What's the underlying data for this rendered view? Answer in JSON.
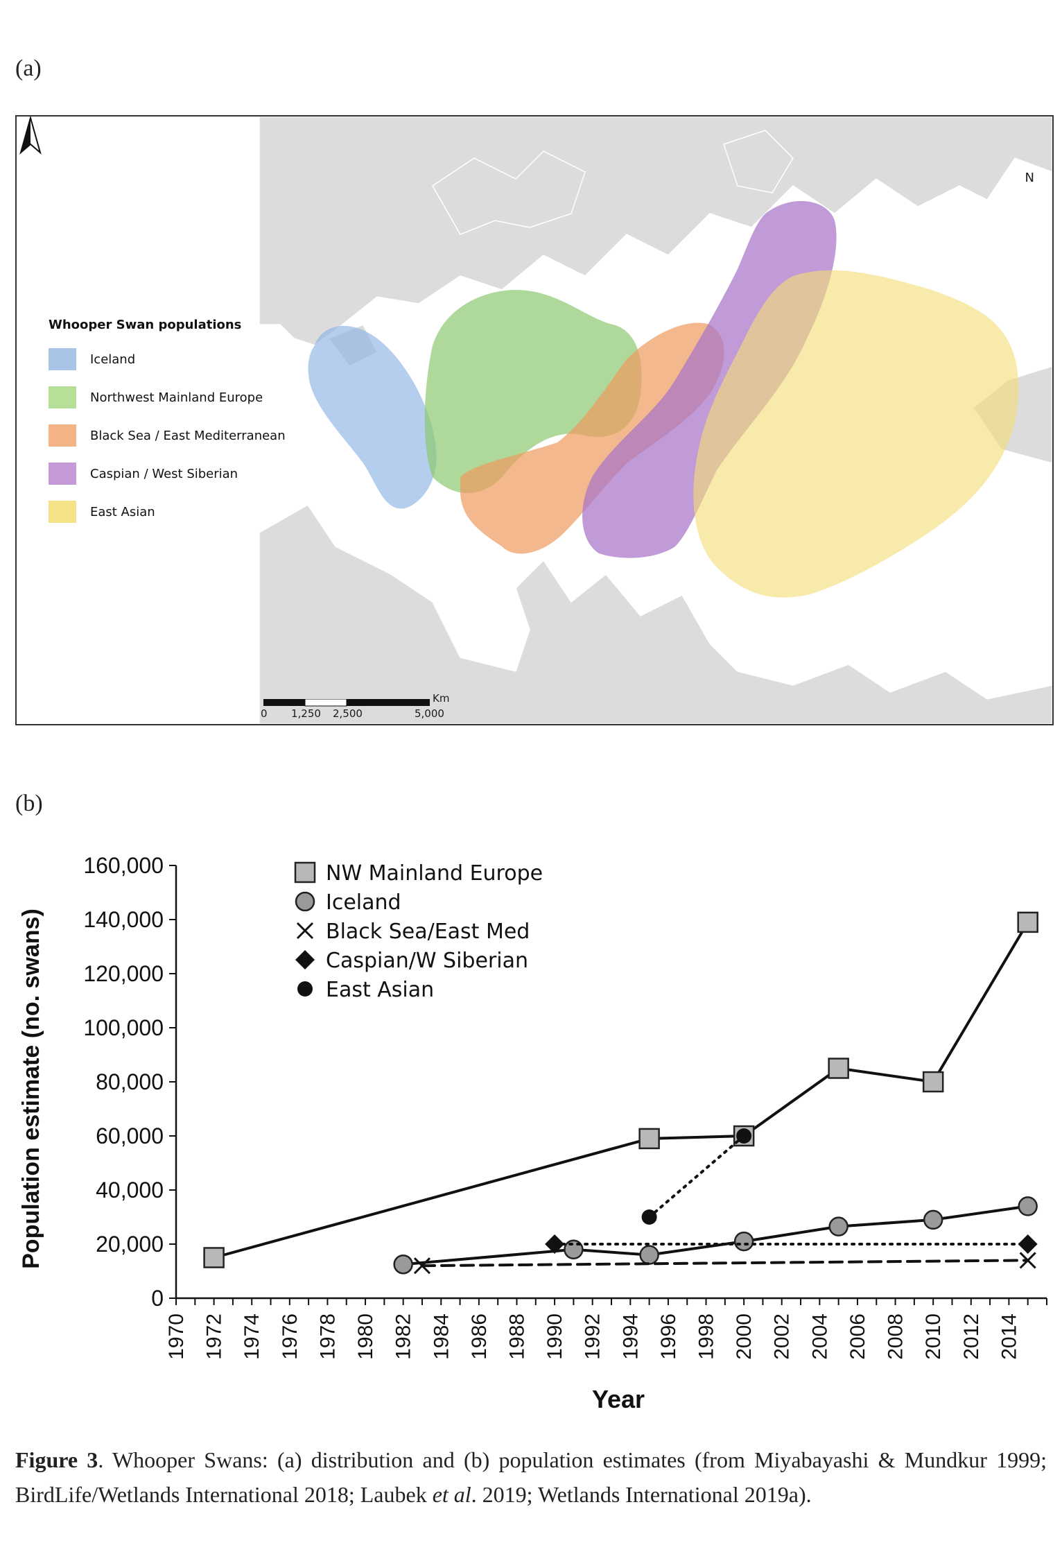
{
  "panels": {
    "a": "(a)",
    "b": "(b)"
  },
  "map": {
    "legend_title": "Whooper Swan populations",
    "legend": [
      {
        "label": "Iceland",
        "color": "#a9c3e6"
      },
      {
        "label": "Northwest Mainland Europe",
        "color": "#b6df98"
      },
      {
        "label": "Black Sea / East Mediterranean",
        "color": "#f3b387"
      },
      {
        "label": "Caspian / West Siberian",
        "color": "#c49ad8"
      },
      {
        "label": "East Asian",
        "color": "#f5e38a"
      }
    ],
    "north": "N",
    "scale": {
      "unit": "Km",
      "ticks": [
        "0",
        "1,250",
        "2,500",
        "5,000"
      ]
    }
  },
  "chart_data": {
    "type": "line",
    "xlabel": "Year",
    "ylabel": "Population estimate (no. swans)",
    "xlim": [
      1970,
      2016
    ],
    "ylim": [
      0,
      160000
    ],
    "x_ticks": [
      "1970",
      "1972",
      "1974",
      "1976",
      "1978",
      "1980",
      "1982",
      "1984",
      "1986",
      "1988",
      "1990",
      "1992",
      "1994",
      "1996",
      "1998",
      "2000",
      "2002",
      "2004",
      "2006",
      "2008",
      "2010",
      "2012",
      "2014"
    ],
    "y_ticks": [
      "0",
      "20,000",
      "40,000",
      "60,000",
      "80,000",
      "100,000",
      "120,000",
      "140,000",
      "160,000"
    ],
    "legend_placement": "top-left",
    "series": [
      {
        "name": "NW Mainland Europe",
        "marker": "square",
        "line": "solid",
        "x": [
          1972,
          1995,
          2000,
          2005,
          2010,
          2015
        ],
        "y": [
          15000,
          59000,
          60000,
          85000,
          80000,
          139000
        ]
      },
      {
        "name": "Iceland",
        "marker": "circle-grey",
        "line": "solid",
        "x": [
          1982,
          1991,
          1995,
          2000,
          2005,
          2010,
          2015
        ],
        "y": [
          12500,
          18000,
          16000,
          21000,
          26500,
          29000,
          34000
        ]
      },
      {
        "name": "Black Sea/East Med",
        "marker": "x",
        "line": "dashed",
        "x": [
          1983,
          2015
        ],
        "y": [
          12000,
          14000
        ]
      },
      {
        "name": "Caspian/W Siberian",
        "marker": "diamond",
        "line": "dotted",
        "x": [
          1990,
          2015
        ],
        "y": [
          20000,
          20000
        ]
      },
      {
        "name": "East Asian",
        "marker": "circle-black",
        "line": "dotted",
        "x": [
          1995,
          2000
        ],
        "y": [
          30000,
          60000
        ]
      }
    ]
  },
  "caption": {
    "label": "Figure 3",
    "text_before": ". Whooper Swans: (a) distribution and (b) population estimates (from Miyabayashi & Mundkur 1999; BirdLife/Wetlands International 2018; Laubek ",
    "etal": "et al",
    "text_after": ". 2019; Wetlands International 2019a)."
  }
}
